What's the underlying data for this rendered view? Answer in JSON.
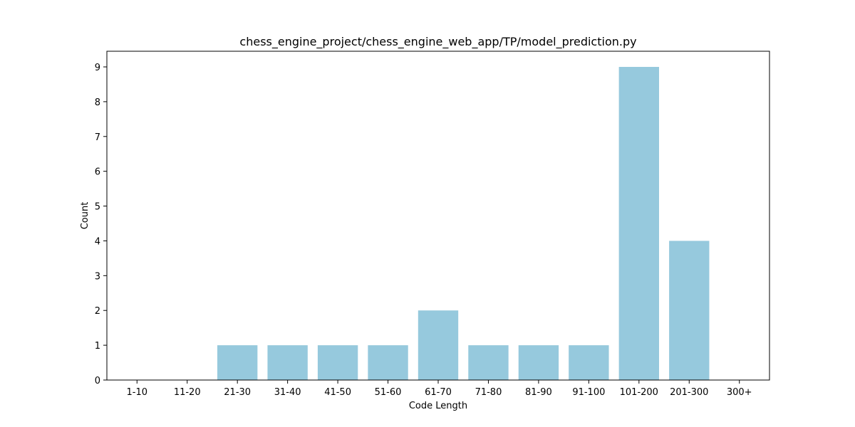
{
  "chart_data": {
    "type": "bar",
    "title": "chess_engine_project/chess_engine_web_app/TP/model_prediction.py",
    "xlabel": "Code Length",
    "ylabel": "Count",
    "categories": [
      "1-10",
      "11-20",
      "21-30",
      "31-40",
      "41-50",
      "51-60",
      "61-70",
      "71-80",
      "81-90",
      "91-100",
      "101-200",
      "201-300",
      "300+"
    ],
    "values": [
      0,
      0,
      1,
      1,
      1,
      1,
      2,
      1,
      1,
      1,
      9,
      4,
      0
    ],
    "ylim": [
      0,
      9.45
    ],
    "yticks": [
      0,
      1,
      2,
      3,
      4,
      5,
      6,
      7,
      8,
      9
    ],
    "bar_color": "#96c9dd",
    "grid": false
  }
}
